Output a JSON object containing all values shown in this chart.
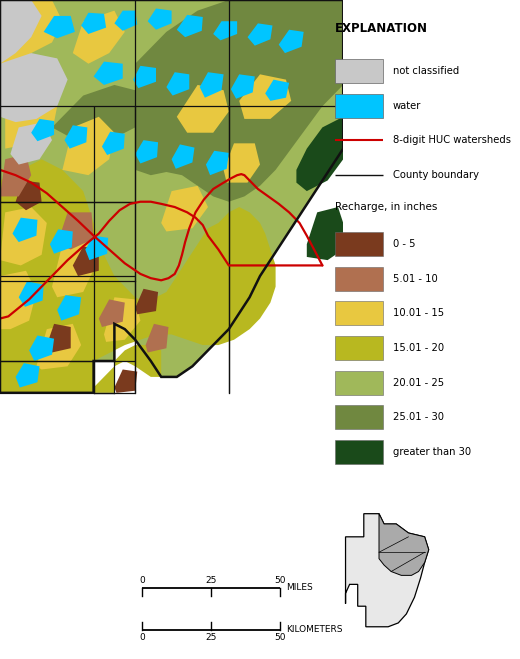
{
  "fig_width": 5.2,
  "fig_height": 6.59,
  "dpi": 100,
  "bg_color": "#ffffff",
  "map_colors": {
    "not_classified": "#c8c8c8",
    "water": "#00c5ff",
    "recharge_0_5": "#7a3a1e",
    "recharge_5_10": "#b07050",
    "recharge_10_15": "#e8c840",
    "recharge_15_20": "#b8b820",
    "recharge_20_25": "#a0b85a",
    "recharge_25_30": "#708840",
    "recharge_30plus": "#1a4a1a",
    "county_boundary": "#111111",
    "huc_watershed": "#cc0000",
    "outline": "#111111"
  },
  "legend": {
    "title": "EXPLANATION",
    "items": [
      {
        "label": "not classified",
        "type": "patch",
        "color": "#c8c8c8"
      },
      {
        "label": "water",
        "type": "patch",
        "color": "#00c5ff"
      },
      {
        "label": "8-digit HUC watersheds",
        "type": "line",
        "color": "#cc0000",
        "lw": 1.5
      },
      {
        "label": "County boundary",
        "type": "line",
        "color": "#111111",
        "lw": 1.0
      }
    ],
    "recharge_title": "Recharge, in inches",
    "recharge_items": [
      {
        "label": "0 - 5",
        "color": "#7a3a1e"
      },
      {
        "label": "5.01 - 10",
        "color": "#b07050"
      },
      {
        "label": "10.01 - 15",
        "color": "#e8c840"
      },
      {
        "label": "15.01 - 20",
        "color": "#b8b820"
      },
      {
        "label": "20.01 - 25",
        "color": "#a0b85a"
      },
      {
        "label": "25.01 - 30",
        "color": "#708840"
      },
      {
        "label": "greater than 30",
        "color": "#1a4a1a"
      }
    ]
  }
}
